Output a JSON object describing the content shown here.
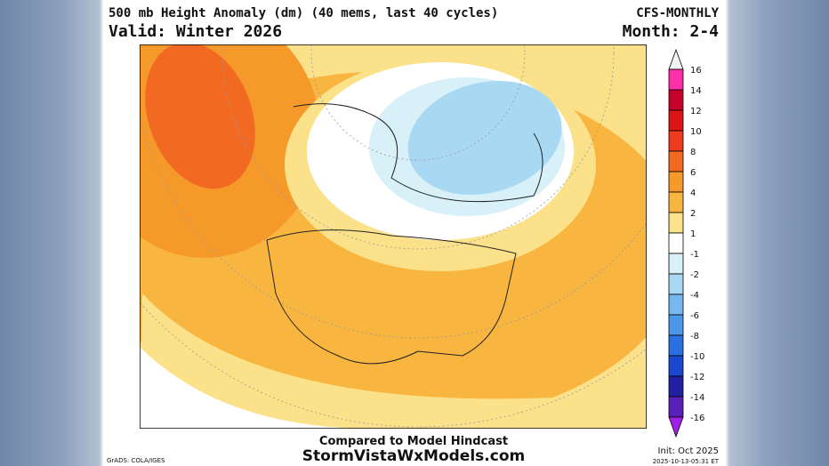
{
  "header": {
    "title": "500 mb Height Anomaly (dm) (40 mems, last 40 cycles)",
    "model": "CFS-MONTHLY",
    "valid": "Valid: Winter 2026",
    "month": "Month: 2-4"
  },
  "legend": {
    "levels": [
      16,
      14,
      12,
      10,
      8,
      6,
      4,
      2,
      1,
      -1,
      -2,
      -4,
      -6,
      -8,
      -10,
      -12,
      -14,
      -16
    ],
    "colors": [
      "#f2f2f2",
      "#ff2fa8",
      "#c8002c",
      "#dc1414",
      "#ee3a1e",
      "#f26a22",
      "#f59a2a",
      "#f8b640",
      "#fbe28a",
      "#ffffff",
      "#d8f0f8",
      "#a8d8f2",
      "#78b8ee",
      "#4c98e8",
      "#2a70e0",
      "#1a48d0",
      "#2020a0",
      "#5a20b8",
      "#a020e8"
    ]
  },
  "footer": {
    "compare": "Compared to Model Hindcast",
    "site": "StormVistaWxModels.com",
    "init": "Init: Oct 2025",
    "stamp": "2025-10-13-05:31 ET",
    "credit": "GrADS: COLA/IGES"
  }
}
